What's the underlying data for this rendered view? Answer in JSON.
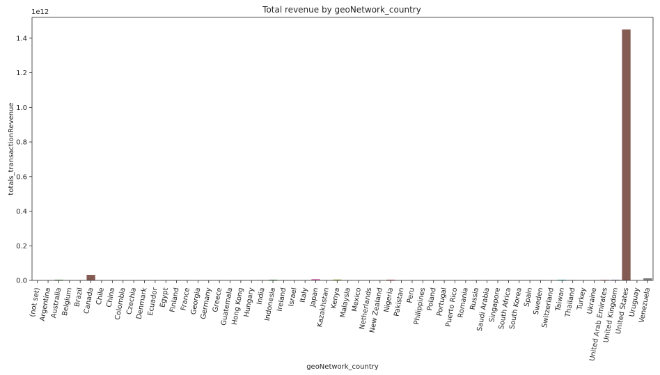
{
  "chart_data": {
    "type": "bar",
    "title": "Total revenue by geoNetwork_country",
    "xlabel": "geoNetwork_country",
    "ylabel": "totals_transactionRevenue",
    "scale_label": "1e12",
    "ylim": [
      0,
      1.52
    ],
    "yticks": [
      0.0,
      0.2,
      0.4,
      0.6,
      0.8,
      1.0,
      1.2,
      1.4
    ],
    "yticks_text": [
      "0.0",
      "0.2",
      "0.4",
      "0.6",
      "0.8",
      "1.0",
      "1.2",
      "1.4"
    ],
    "grid": false,
    "legend": "none",
    "categories": [
      "(not set)",
      "Argentina",
      "Australia",
      "Belgium",
      "Brazil",
      "Canada",
      "Chile",
      "China",
      "Colombia",
      "Czechia",
      "Denmark",
      "Ecuador",
      "Egypt",
      "Finland",
      "France",
      "Georgia",
      "Germany",
      "Greece",
      "Guatemala",
      "Hong Kong",
      "Hungary",
      "India",
      "Indonesia",
      "Ireland",
      "Israel",
      "Italy",
      "Japan",
      "Kazakhstan",
      "Kenya",
      "Malaysia",
      "Mexico",
      "Netherlands",
      "New Zealand",
      "Nigeria",
      "Pakistan",
      "Peru",
      "Philippines",
      "Poland",
      "Portugal",
      "Puerto Rico",
      "Romania",
      "Russia",
      "Saudi Arabia",
      "Singapore",
      "South Africa",
      "South Korea",
      "Spain",
      "Sweden",
      "Switzerland",
      "Taiwan",
      "Thailand",
      "Turkey",
      "Ukraine",
      "United Arab Emirates",
      "United Kingdom",
      "United States",
      "Uruguay",
      "Venezuela"
    ],
    "values": [
      0.001,
      0.0005,
      0.004,
      0.001,
      0.001,
      0.032,
      0.001,
      0.0015,
      0.001,
      0.0005,
      0.001,
      0.0005,
      0.001,
      0.001,
      0.001,
      0.0005,
      0.001,
      0.0005,
      0.0005,
      0.0015,
      0.0005,
      0.0015,
      0.004,
      0.001,
      0.001,
      0.001,
      0.008,
      0.001,
      0.005,
      0.001,
      0.001,
      0.001,
      0.0005,
      0.004,
      0.0005,
      0.0005,
      0.001,
      0.001,
      0.0005,
      0.001,
      0.0005,
      0.001,
      0.0005,
      0.001,
      0.001,
      0.001,
      0.001,
      0.001,
      0.001,
      0.004,
      0.002,
      0.001,
      0.001,
      0.003,
      0.004,
      1.45,
      0.0005,
      0.012
    ],
    "colors": [
      "#3274a1",
      "#e1812c",
      "#3a923a",
      "#c03d3e",
      "#9372b2",
      "#845b53",
      "#d684bd",
      "#7f7f7f",
      "#a9aa35",
      "#2eb4c5"
    ]
  }
}
